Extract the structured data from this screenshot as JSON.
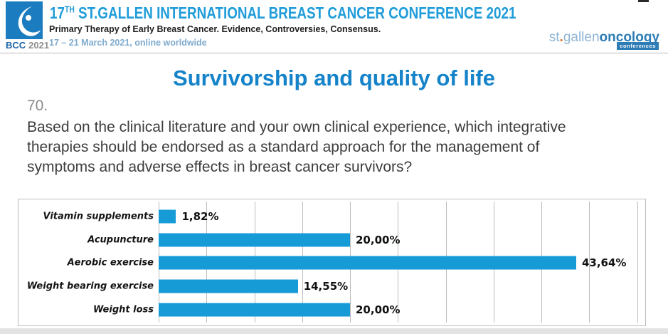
{
  "header": {
    "logo_bcc": "BCC",
    "logo_year": "2021",
    "title_number": "17",
    "title_sup": "TH",
    "title_rest": " ST.GALLEN INTERNATIONAL BREAST CANCER CONFERENCE 2021",
    "subtitle": "Primary Therapy of Early Breast Cancer. Evidence, Controversies, Consensus.",
    "dates": "17 – 21 March 2021, online worldwide",
    "brand": {
      "part1": "st",
      "dot": ".",
      "part2": "gallen",
      "part3": "oncology",
      "badge": "conferences"
    }
  },
  "slide": {
    "title": "Survivorship and quality of life",
    "question_number": "70.",
    "question_text": "Based on the clinical literature and your own clinical experience, which integrative therapies should be endorsed as a standard approach for the management of symptoms and adverse effects in breast cancer survivors?"
  },
  "chart_data": {
    "type": "bar",
    "orientation": "horizontal",
    "categories": [
      "Vitamin supplements",
      "Acupuncture",
      "Aerobic exercise",
      "Weight bearing exercise",
      "Weight loss"
    ],
    "values": [
      1.82,
      20.0,
      43.64,
      14.55,
      20.0
    ],
    "value_labels": [
      "1,82%",
      "20,00%",
      "43,64%",
      "14,55%",
      "20,00%"
    ],
    "title": "",
    "xlabel": "",
    "ylabel": "",
    "xlim": [
      0,
      50
    ],
    "gridline_interval": 5,
    "grid": true,
    "legend": false,
    "bar_color": "#169bd7"
  },
  "colors": {
    "header_blue": "#1f9cd9",
    "title_blue": "#1583c9",
    "date_blue": "#7fabce",
    "brand_light": "#8fb5d5",
    "brand_dark": "#2d7cb5",
    "brand_orange": "#e0762f",
    "logo_bg": "#1b7cc0",
    "accent_blue": "#169bd7"
  }
}
